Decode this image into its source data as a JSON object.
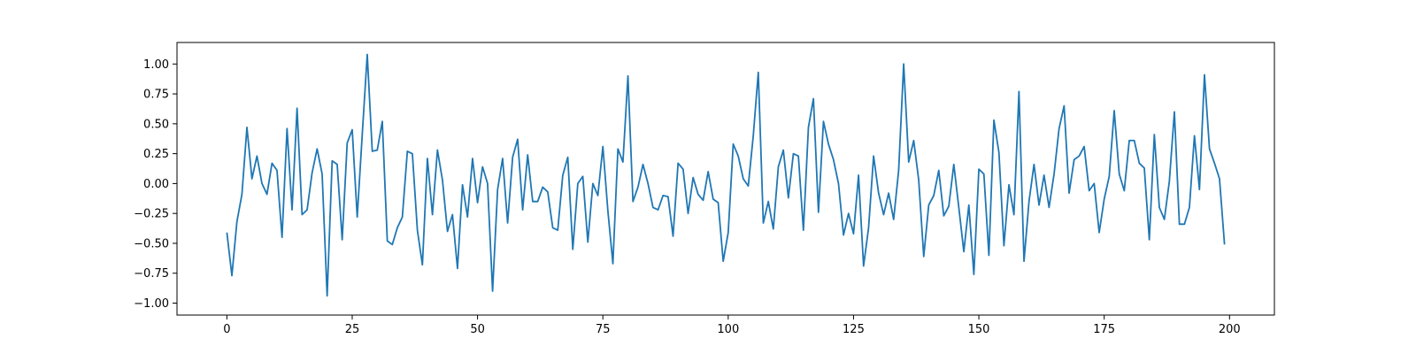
{
  "chart_data": {
    "type": "line",
    "title": "",
    "xlabel": "",
    "ylabel": "",
    "xlim": [
      -9.95,
      208.95
    ],
    "ylim": [
      -1.1,
      1.18
    ],
    "grid": false,
    "legend": "none",
    "x_ticks": [
      0,
      25,
      50,
      75,
      100,
      125,
      150,
      175,
      200
    ],
    "x_tick_labels": [
      "0",
      "25",
      "50",
      "75",
      "100",
      "125",
      "150",
      "175",
      "200"
    ],
    "y_ticks": [
      -1.0,
      -0.75,
      -0.5,
      -0.25,
      0.0,
      0.25,
      0.5,
      0.75,
      1.0
    ],
    "y_tick_labels": [
      "−1.00",
      "−0.75",
      "−0.50",
      "−0.25",
      "0.00",
      "0.25",
      "0.50",
      "0.75",
      "1.00"
    ],
    "series": [
      {
        "color": "#1f77b4",
        "x_start": 0,
        "x_step": 1,
        "values": [
          -0.41,
          -0.77,
          -0.32,
          -0.09,
          0.47,
          0.04,
          0.23,
          0.0,
          -0.09,
          0.17,
          0.11,
          -0.45,
          0.46,
          -0.22,
          0.63,
          -0.26,
          -0.22,
          0.09,
          0.29,
          0.08,
          -0.94,
          0.19,
          0.16,
          -0.47,
          0.34,
          0.45,
          -0.28,
          0.41,
          1.08,
          0.27,
          0.28,
          0.52,
          -0.48,
          -0.51,
          -0.37,
          -0.28,
          0.27,
          0.25,
          -0.39,
          -0.68,
          0.21,
          -0.26,
          0.28,
          0.03,
          -0.4,
          -0.26,
          -0.71,
          -0.01,
          -0.28,
          0.21,
          -0.16,
          0.14,
          0.0,
          -0.9,
          -0.05,
          0.21,
          -0.33,
          0.22,
          0.37,
          -0.22,
          0.24,
          -0.15,
          -0.15,
          -0.03,
          -0.07,
          -0.37,
          -0.39,
          0.07,
          0.22,
          -0.55,
          0.0,
          0.06,
          -0.49,
          0.0,
          -0.1,
          0.31,
          -0.23,
          -0.67,
          0.29,
          0.18,
          0.9,
          -0.15,
          -0.03,
          0.16,
          0.0,
          -0.2,
          -0.22,
          -0.1,
          -0.11,
          -0.44,
          0.17,
          0.12,
          -0.25,
          0.05,
          -0.09,
          -0.14,
          0.1,
          -0.13,
          -0.16,
          -0.65,
          -0.41,
          0.33,
          0.23,
          0.04,
          -0.02,
          0.4,
          0.93,
          -0.33,
          -0.15,
          -0.38,
          0.14,
          0.28,
          -0.12,
          0.25,
          0.23,
          -0.39,
          0.47,
          0.71,
          -0.24,
          0.52,
          0.33,
          0.2,
          0.0,
          -0.43,
          -0.25,
          -0.42,
          0.07,
          -0.69,
          -0.37,
          0.23,
          -0.08,
          -0.26,
          -0.08,
          -0.3,
          0.11,
          1.0,
          0.18,
          0.36,
          0.03,
          -0.61,
          -0.18,
          -0.1,
          0.11,
          -0.27,
          -0.19,
          0.16,
          -0.2,
          -0.57,
          -0.18,
          -0.76,
          0.12,
          0.08,
          -0.6,
          0.53,
          0.26,
          -0.52,
          -0.01,
          -0.26,
          0.77,
          -0.65,
          -0.15,
          0.16,
          -0.18,
          0.07,
          -0.2,
          0.08,
          0.46,
          0.65,
          -0.08,
          0.2,
          0.23,
          0.31,
          -0.06,
          0.0,
          -0.41,
          -0.13,
          0.06,
          0.61,
          0.08,
          -0.06,
          0.36,
          0.36,
          0.17,
          0.13,
          -0.47,
          0.41,
          -0.2,
          -0.3,
          0.02,
          0.6,
          -0.34,
          -0.34,
          -0.2,
          0.4,
          -0.05,
          0.91,
          0.29,
          0.17,
          0.04,
          -0.51
        ]
      }
    ]
  }
}
